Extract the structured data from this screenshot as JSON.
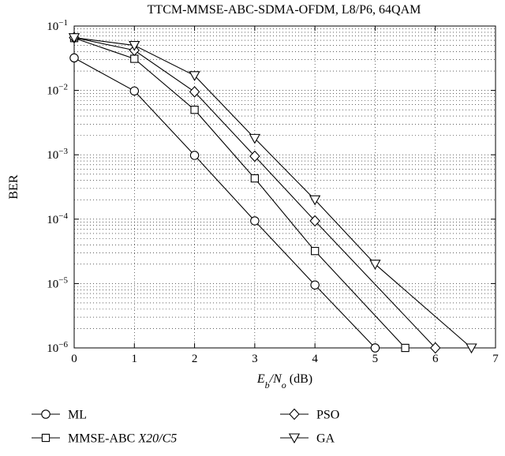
{
  "chart_data": {
    "type": "line",
    "title": "TTCM-MMSE-ABC-SDMA-OFDM, L8/P6, 64QAM",
    "xlabel": {
      "main": "E",
      "sub1": "b",
      "slash": "/N",
      "sub2": "o",
      "unit": " (dB)"
    },
    "ylabel": "BER",
    "xlim": [
      0,
      7
    ],
    "ylim": [
      1e-06,
      0.1
    ],
    "yscale": "log",
    "grid": true,
    "legend_position": "bottom",
    "x_ticks": [
      "0",
      "1",
      "2",
      "3",
      "4",
      "5",
      "6",
      "7"
    ],
    "y_ticks": [
      {
        "value": 0.1,
        "base": "10",
        "exp": "−1"
      },
      {
        "value": 0.01,
        "base": "10",
        "exp": "−2"
      },
      {
        "value": 0.001,
        "base": "10",
        "exp": "−3"
      },
      {
        "value": 0.0001,
        "base": "10",
        "exp": "−4"
      },
      {
        "value": 1e-05,
        "base": "10",
        "exp": "−5"
      },
      {
        "value": 1e-06,
        "base": "10",
        "exp": "−6"
      }
    ],
    "series": [
      {
        "name": "ML",
        "marker": "circle",
        "x": [
          0,
          1,
          2,
          3,
          4,
          5
        ],
        "y": [
          0.032,
          0.0098,
          0.00098,
          9.4e-05,
          9.5e-06,
          1e-06
        ]
      },
      {
        "name": "MMSE-ABC X20/C5",
        "marker": "square",
        "x": [
          0,
          1,
          2,
          3,
          4,
          5.5
        ],
        "y": [
          0.065,
          0.031,
          0.005,
          0.00043,
          3.2e-05,
          1e-06
        ]
      },
      {
        "name": "PSO",
        "marker": "diamond",
        "x": [
          0,
          1,
          2,
          3,
          4,
          6
        ],
        "y": [
          0.066,
          0.042,
          0.0095,
          0.00095,
          9.4e-05,
          1e-06
        ]
      },
      {
        "name": "GA",
        "marker": "triangle-down",
        "x": [
          0,
          1,
          2,
          3,
          4,
          5,
          6.6
        ],
        "y": [
          0.066,
          0.05,
          0.017,
          0.0018,
          0.0002,
          2e-05,
          1e-06
        ]
      }
    ],
    "legend": [
      {
        "label": "ML",
        "marker": "circle",
        "italic_part": ""
      },
      {
        "label": "PSO",
        "marker": "diamond",
        "italic_part": ""
      },
      {
        "label": "MMSE-ABC ",
        "marker": "square",
        "italic_part": "X20/C5"
      },
      {
        "label": "GA",
        "marker": "triangle-down",
        "italic_part": ""
      }
    ]
  }
}
